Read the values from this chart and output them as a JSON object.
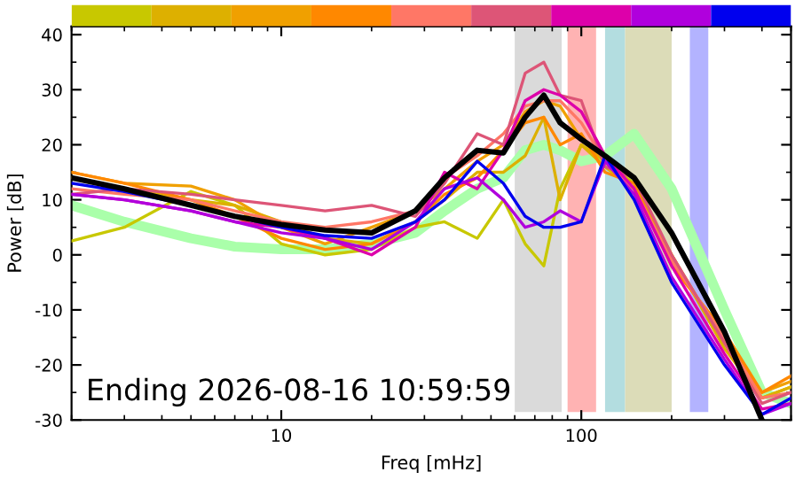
{
  "chart_data": {
    "type": "line",
    "xlabel": "Freq [mHz]",
    "ylabel": "Power [dB]",
    "log": "x",
    "xlim": [
      2,
      500
    ],
    "ylim": [
      -30,
      41.5
    ],
    "xticks": [
      10,
      100
    ],
    "yticks": [
      -30,
      -20,
      -10,
      0,
      10,
      20,
      30,
      40
    ],
    "grid": false,
    "legend": false,
    "marker": "none",
    "line_style": "solid",
    "x": [
      2,
      3,
      5,
      7,
      10,
      14,
      20,
      28,
      35,
      45,
      55,
      65,
      75,
      85,
      100,
      120,
      150,
      200,
      300,
      400,
      500
    ],
    "series": [
      {
        "color": "#aaffaa",
        "values": [
          9,
          6,
          3,
          1.5,
          1,
          1,
          2,
          4,
          8,
          12,
          14,
          19,
          20,
          19,
          17,
          18,
          22,
          12,
          -10,
          -25,
          -27
        ]
      },
      {
        "color": "#c8c800",
        "values": [
          2.5,
          5,
          11.5,
          9,
          2,
          0,
          1,
          5,
          6,
          3,
          10,
          2,
          -2,
          12,
          20,
          17,
          13,
          0,
          -16,
          -26,
          -24
        ]
      },
      {
        "color": "#ddb000",
        "values": [
          14,
          12,
          10,
          9,
          6,
          3,
          2,
          6,
          10,
          15,
          15,
          18,
          25,
          10,
          20,
          16,
          12,
          0,
          -17,
          -26,
          -24
        ]
      },
      {
        "color": "#f0a000",
        "values": [
          15,
          13,
          12.5,
          10,
          5,
          2,
          5,
          8,
          12,
          17,
          20,
          26,
          28,
          27,
          21,
          17,
          12,
          -1,
          -15,
          -25,
          -23
        ]
      },
      {
        "color": "#ff8800",
        "values": [
          15,
          13,
          10,
          7,
          3,
          1,
          2,
          6,
          11,
          14,
          19,
          24,
          25,
          20,
          22,
          15,
          13,
          -2,
          -14,
          -25,
          -22
        ]
      },
      {
        "color": "#ff7766",
        "values": [
          12,
          11,
          10,
          8,
          6,
          5,
          6,
          8,
          14,
          18,
          22,
          27,
          28,
          28,
          24,
          17,
          12,
          -1,
          -15,
          -26,
          -25
        ]
      },
      {
        "color": "#dd5577",
        "values": [
          11,
          12,
          11,
          10,
          9,
          8,
          9,
          7,
          13,
          22,
          20,
          33,
          35,
          29,
          28,
          16,
          14,
          0,
          -16,
          -27,
          -25
        ]
      },
      {
        "color": "#dd00aa",
        "values": [
          11,
          10,
          8,
          6,
          5,
          3,
          0,
          5,
          15,
          12,
          19,
          28,
          30,
          29,
          26,
          18,
          12,
          -2,
          -18,
          -28,
          -27
        ]
      },
      {
        "color": "#b000dd",
        "values": [
          11,
          10,
          8,
          6,
          4,
          3,
          1,
          6,
          12,
          14,
          10,
          5,
          6,
          8,
          6,
          17,
          11,
          -4,
          -19,
          -29,
          -27
        ]
      },
      {
        "color": "#0000ee",
        "values": [
          13,
          11.5,
          9,
          7,
          5,
          3.5,
          3,
          6,
          10,
          17,
          13,
          7,
          5,
          5,
          6,
          18,
          10,
          -5,
          -20,
          -29,
          -26
        ]
      },
      {
        "color": "#000000",
        "values": [
          14,
          12,
          9,
          7,
          5.5,
          4.5,
          4,
          8,
          14,
          19,
          18.5,
          25,
          29,
          24,
          21,
          18,
          14,
          4,
          -14,
          -30,
          null
        ]
      }
    ],
    "bands": [
      {
        "axis": "x",
        "from": 60,
        "to": 86,
        "color": "#dadada"
      },
      {
        "axis": "x",
        "from": 90,
        "to": 112,
        "color": "#ffb3b3"
      },
      {
        "axis": "x",
        "from": 120,
        "to": 140,
        "color": "#b3dde0"
      },
      {
        "axis": "x",
        "from": 140,
        "to": 200,
        "color": "#dcdcb8"
      },
      {
        "axis": "x",
        "from": 230,
        "to": 265,
        "color": "#b3b3ff"
      }
    ],
    "annotations": [
      "Ending 2026-08-16 10:59:59"
    ]
  }
}
